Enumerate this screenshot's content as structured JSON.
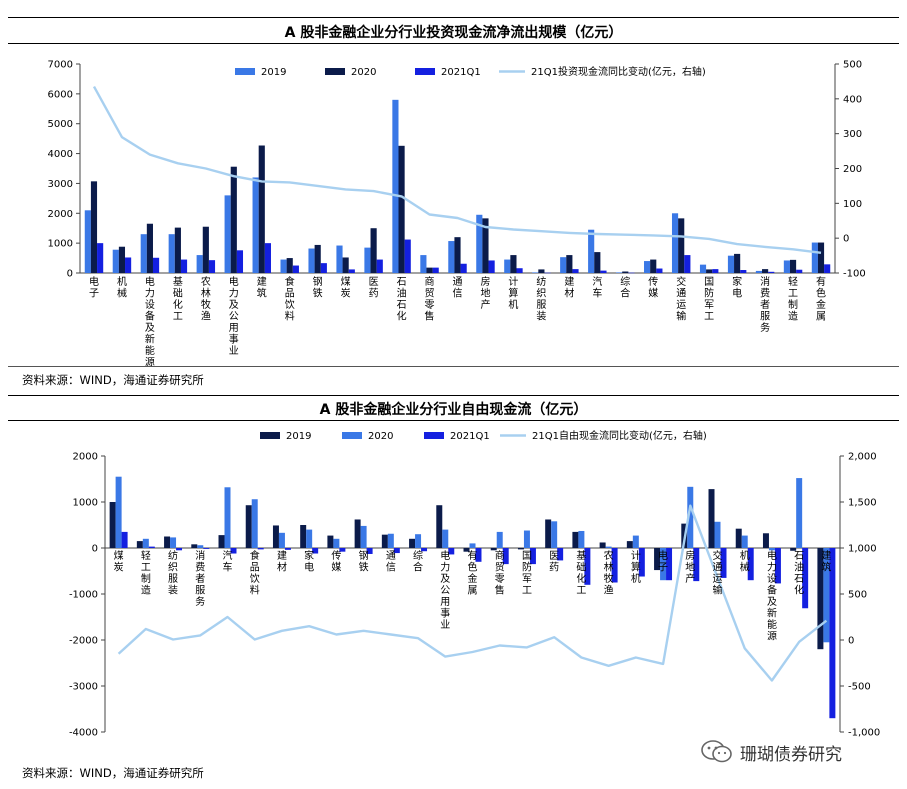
{
  "panel1": {
    "title": "A 股非金融企业分行业投资现金流净流出规模（亿元）",
    "source": "资料来源：WIND，海通证券研究所"
  },
  "panel2": {
    "title": "A 股非金融企业分行业自由现金流（亿元）",
    "source": "资料来源：WIND，海通证券研究所"
  },
  "watermark": "珊瑚债券研究",
  "chart_data": [
    {
      "type": "bar",
      "title": "A 股非金融企业分行业投资现金流净流出规模（亿元）",
      "categories": [
        "电子",
        "机械",
        "电力设备及新能源",
        "基础化工",
        "农林牧渔",
        "电力及公用事业",
        "建筑",
        "食品饮料",
        "钢铁",
        "煤炭",
        "医药",
        "石油石化",
        "商贸零售",
        "通信",
        "房地产",
        "计算机",
        "纺织服装",
        "建材",
        "汽车",
        "综合",
        "传媒",
        "交通运输",
        "国防军工",
        "家电",
        "消费者服务",
        "轻工制造",
        "有色金属"
      ],
      "ylim": [
        0,
        7000
      ],
      "y2lim": [
        -100,
        500
      ],
      "yticks": [
        0,
        1000,
        2000,
        3000,
        4000,
        5000,
        6000,
        7000
      ],
      "y2ticks": [
        -100,
        0,
        100,
        200,
        300,
        400,
        500
      ],
      "colors": {
        "2019": "#3a78e6",
        "2020": "#0b1b4a",
        "2021Q1": "#1420e0",
        "line": "#a8d0f0"
      },
      "legend_placement": "top",
      "series": [
        {
          "name": "2019",
          "values": [
            2100,
            780,
            1300,
            1300,
            600,
            2600,
            3200,
            450,
            820,
            920,
            850,
            5800,
            600,
            1070,
            1950,
            450,
            20,
            530,
            1450,
            20,
            400,
            2000,
            280,
            580,
            70,
            420,
            1020
          ]
        },
        {
          "name": "2020",
          "values": [
            3070,
            880,
            1650,
            1520,
            1550,
            3560,
            4270,
            500,
            940,
            520,
            1500,
            4260,
            180,
            1200,
            1830,
            600,
            120,
            600,
            700,
            50,
            450,
            1830,
            120,
            640,
            130,
            440,
            1020
          ]
        },
        {
          "name": "2021Q1",
          "values": [
            1000,
            520,
            510,
            450,
            430,
            760,
            1000,
            250,
            330,
            120,
            450,
            1120,
            180,
            310,
            420,
            160,
            10,
            130,
            80,
            10,
            150,
            600,
            130,
            100,
            40,
            110,
            290
          ]
        },
        {
          "name": "21Q1投资现金流同比变动(亿元，右轴)",
          "axis": "right",
          "values": [
            435,
            290,
            240,
            215,
            200,
            178,
            163,
            160,
            150,
            140,
            135,
            120,
            68,
            58,
            32,
            25,
            20,
            15,
            12,
            10,
            8,
            5,
            -2,
            -17,
            -25,
            -32,
            -42
          ]
        }
      ]
    },
    {
      "type": "bar",
      "title": "A 股非金融企业分行业自由现金流（亿元）",
      "categories": [
        "煤炭",
        "轻工制造",
        "纺织服装",
        "消费者服务",
        "汽车",
        "食品饮料",
        "建材",
        "家电",
        "传媒",
        "钢铁",
        "通信",
        "综合",
        "电力及公用事业",
        "有色金属",
        "商贸零售",
        "国防军工",
        "医药",
        "基础化工",
        "农林牧渔",
        "计算机",
        "电子",
        "房地产",
        "交通运输",
        "机械",
        "电力设备及新能源",
        "石油石化",
        "建筑"
      ],
      "ylim": [
        -4000,
        2000
      ],
      "y2lim": [
        -1000,
        2000
      ],
      "yticks": [
        -4000,
        -3000,
        -2000,
        -1000,
        0,
        1000,
        2000
      ],
      "y2ticks": [
        -1000,
        -500,
        0,
        500,
        1000,
        1500,
        2000
      ],
      "y2ticklabels": [
        "-1,000",
        "-500",
        "0",
        "500",
        "1,000",
        "1,500",
        "2,000"
      ],
      "colors": {
        "2019": "#0b1b4a",
        "2020": "#3a78e6",
        "2021Q1": "#1420e0",
        "line": "#a8d0f0"
      },
      "legend_placement": "top",
      "series": [
        {
          "name": "2019",
          "values": [
            1000,
            150,
            250,
            80,
            280,
            930,
            490,
            500,
            270,
            620,
            290,
            200,
            930,
            -80,
            -50,
            -30,
            620,
            350,
            120,
            150,
            -480,
            530,
            1280,
            420,
            320,
            -60,
            -2200
          ]
        },
        {
          "name": "2020",
          "values": [
            1550,
            200,
            230,
            60,
            1320,
            1060,
            330,
            400,
            200,
            480,
            310,
            300,
            400,
            100,
            350,
            380,
            580,
            370,
            30,
            270,
            -700,
            1330,
            570,
            270,
            -50,
            1520,
            -2050
          ]
        },
        {
          "name": "2021Q1",
          "values": [
            350,
            30,
            -50,
            -20,
            -120,
            -30,
            -40,
            -120,
            -80,
            -130,
            -110,
            -70,
            -140,
            -300,
            -350,
            -350,
            -270,
            -800,
            -750,
            -620,
            -700,
            -720,
            -650,
            -700,
            -770,
            -1310,
            -3700
          ]
        },
        {
          "name": "21Q1自由现金流同比变动(亿元，右轴)",
          "axis": "right",
          "values": [
            -150,
            120,
            5,
            50,
            250,
            5,
            100,
            150,
            60,
            100,
            60,
            20,
            -180,
            -130,
            -60,
            -80,
            30,
            -190,
            -280,
            -190,
            -260,
            1460,
            680,
            -90,
            -440,
            -20,
            210
          ]
        }
      ]
    }
  ]
}
